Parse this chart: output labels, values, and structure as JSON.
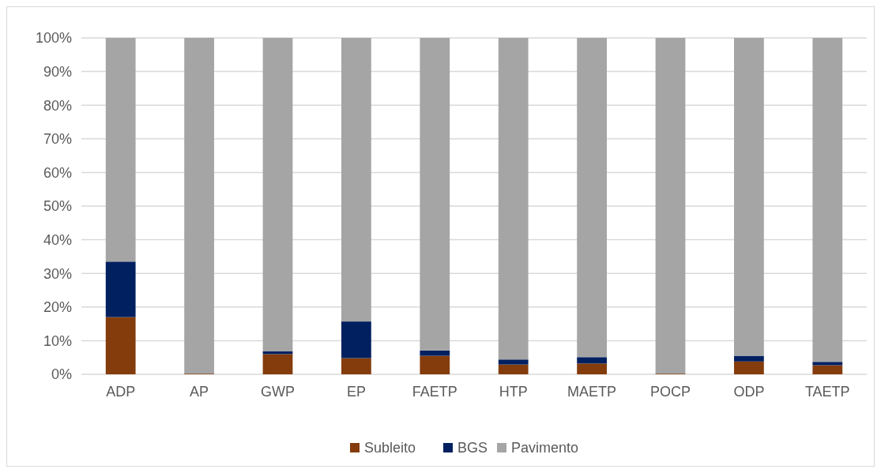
{
  "chart_data": {
    "type": "bar",
    "stacked": true,
    "categories": [
      "ADP",
      "AP",
      "GWP",
      "EP",
      "FAETP",
      "HTP",
      "MAETP",
      "POCP",
      "ODP",
      "TAETP"
    ],
    "series": [
      {
        "name": "Subleito",
        "color": "#843c0c",
        "values": [
          17.0,
          0.2,
          6.0,
          4.8,
          5.5,
          2.9,
          3.2,
          0.2,
          3.8,
          2.7
        ]
      },
      {
        "name": "BGS",
        "color": "#002060",
        "values": [
          16.5,
          0,
          0.8,
          10.9,
          1.6,
          1.5,
          1.9,
          0,
          1.7,
          1.0
        ]
      },
      {
        "name": "Pavimento",
        "color": "#a5a5a5",
        "values": [
          66.5,
          99.8,
          93.2,
          84.3,
          92.9,
          95.6,
          94.9,
          99.8,
          94.5,
          96.3
        ]
      }
    ],
    "ylim": [
      0,
      100
    ],
    "yticks": [
      {
        "value": 0,
        "label": "0%"
      },
      {
        "value": 10,
        "label": "10%"
      },
      {
        "value": 20,
        "label": "20%"
      },
      {
        "value": 30,
        "label": "30%"
      },
      {
        "value": 40,
        "label": "40%"
      },
      {
        "value": 50,
        "label": "50%"
      },
      {
        "value": 60,
        "label": "60%"
      },
      {
        "value": 70,
        "label": "70%"
      },
      {
        "value": 80,
        "label": "80%"
      },
      {
        "value": 90,
        "label": "90%"
      },
      {
        "value": 100,
        "label": "100%"
      }
    ],
    "grid": "y",
    "legend": "bottom"
  }
}
